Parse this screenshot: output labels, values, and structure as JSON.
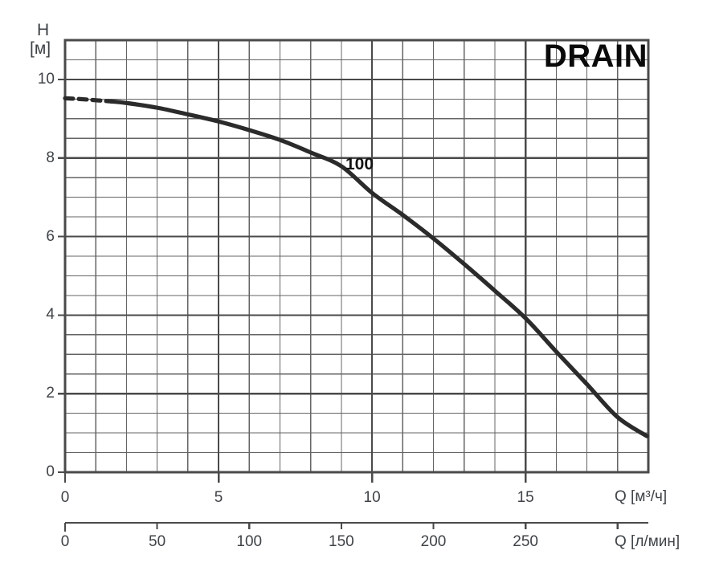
{
  "header": {
    "title": "DRAIN"
  },
  "y_axis": {
    "name": "H",
    "unit": "[м]"
  },
  "primary_x_axis": {
    "unit_label": "Q [м³/ч]"
  },
  "secondary_x_axis": {
    "unit_label": "Q [л/мин]"
  },
  "curve": {
    "label": "100"
  },
  "colors": {
    "background": "#ffffff",
    "grid_minor": "#646464",
    "grid_major": "#4a4a4a",
    "axis": "#4a4a4a",
    "curve": "#2b2b2b",
    "text": "#3f4347",
    "title": "#0a0a0a"
  },
  "chart_data": {
    "type": "line",
    "title": "DRAIN",
    "ylabel": "H [м]",
    "xlabel_primary": "Q [м³/ч]",
    "xlabel_secondary": "Q [л/мин]",
    "xlim_m3h": [
      0,
      19
    ],
    "ylim_m": [
      0,
      11
    ],
    "grid": "on",
    "x_minor_step_m3h": 1,
    "x_major_step_m3h": 5,
    "y_minor_step_m": 0.5,
    "y_major_step_m": 2,
    "y_ticks": [
      10,
      8,
      6,
      4,
      2,
      0
    ],
    "x_ticks_m3h": [
      0,
      5,
      10,
      15
    ],
    "x_ticks_lmin": [
      0,
      50,
      100,
      150,
      200,
      250
    ],
    "x_tick_marks_lmin": [
      0,
      50,
      100,
      150,
      200,
      250,
      300
    ],
    "lmin_per_m3h": 16.6667,
    "series": [
      {
        "name": "100",
        "dashed_until_x": 1.5,
        "points": [
          [
            0,
            9.52
          ],
          [
            0.5,
            9.5
          ],
          [
            1,
            9.47
          ],
          [
            1.5,
            9.44
          ],
          [
            2,
            9.4
          ],
          [
            3,
            9.28
          ],
          [
            4,
            9.11
          ],
          [
            5,
            8.93
          ],
          [
            6,
            8.71
          ],
          [
            7,
            8.46
          ],
          [
            8,
            8.14
          ],
          [
            9,
            7.79
          ],
          [
            10,
            7.11
          ],
          [
            11,
            6.55
          ],
          [
            12,
            5.95
          ],
          [
            13,
            5.3
          ],
          [
            14,
            4.62
          ],
          [
            15,
            3.92
          ],
          [
            16,
            3.07
          ],
          [
            17,
            2.24
          ],
          [
            18,
            1.4
          ],
          [
            18.95,
            0.92
          ]
        ]
      }
    ]
  }
}
